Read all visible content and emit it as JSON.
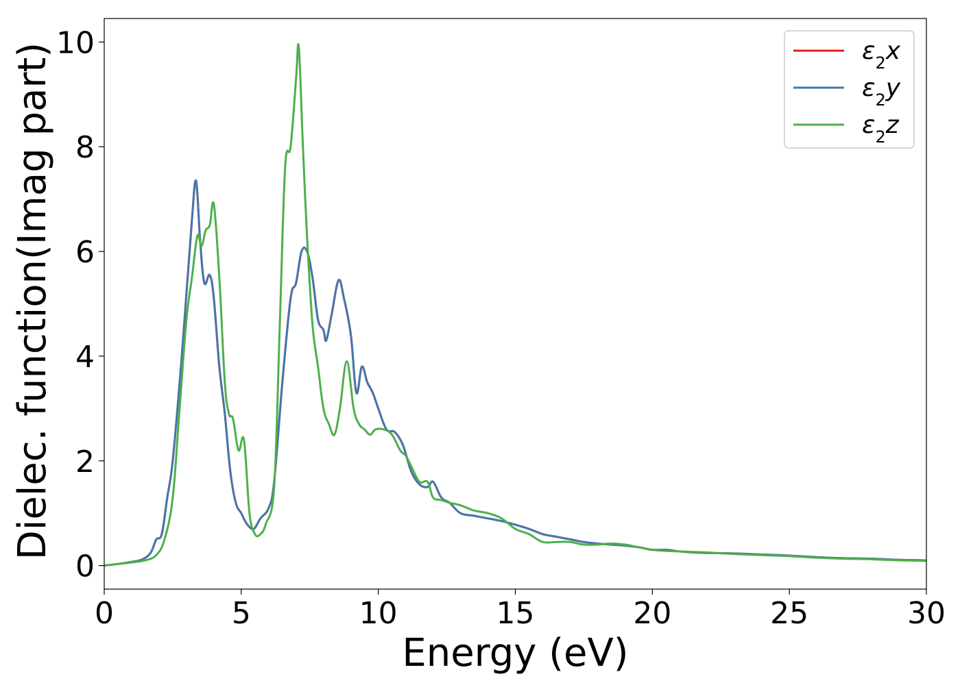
{
  "chart_data": {
    "type": "line",
    "title": "",
    "xlabel": "Energy (eV)",
    "ylabel": "Dielec. function(Imag part)",
    "xlim": [
      0,
      30
    ],
    "ylim": [
      -0.45,
      10.45
    ],
    "xticks": [
      0,
      5,
      10,
      15,
      20,
      25,
      30
    ],
    "yticks": [
      0,
      2,
      4,
      6,
      8,
      10
    ],
    "grid": false,
    "legend_position": "top-right",
    "series": [
      {
        "name": "ε2x",
        "legend_main": "ε",
        "legend_sub": "2",
        "legend_var": "x",
        "color": "#e41a1c",
        "x": [
          0,
          0.5,
          1,
          1.4,
          1.7,
          1.9,
          2.1,
          2.3,
          2.5,
          2.8,
          3.0,
          3.2,
          3.35,
          3.5,
          3.65,
          3.85,
          4.0,
          4.2,
          4.4,
          4.6,
          4.8,
          5.0,
          5.2,
          5.45,
          5.7,
          6.0,
          6.2,
          6.5,
          6.8,
          7.0,
          7.2,
          7.4,
          7.6,
          7.8,
          8.0,
          8.1,
          8.3,
          8.55,
          8.75,
          9.0,
          9.2,
          9.4,
          9.6,
          9.8,
          10.0,
          10.3,
          10.6,
          10.9,
          11.2,
          11.5,
          11.8,
          12.0,
          12.3,
          12.6,
          13.0,
          13.5,
          14.0,
          14.5,
          15.0,
          15.5,
          16.0,
          16.5,
          17.0,
          17.5,
          18.0,
          18.5,
          19.0,
          19.5,
          20.0,
          20.5,
          21.0,
          21.5,
          22.0,
          23.0,
          24.0,
          25.0,
          26.0,
          27.0,
          28.0,
          29.0,
          30.0
        ],
        "values": [
          0.0,
          0.03,
          0.07,
          0.12,
          0.25,
          0.5,
          0.6,
          1.3,
          2.0,
          3.8,
          5.2,
          6.6,
          7.35,
          6.2,
          5.4,
          5.55,
          5.1,
          3.8,
          2.9,
          1.8,
          1.2,
          1.0,
          0.8,
          0.7,
          0.9,
          1.1,
          1.6,
          3.5,
          5.1,
          5.4,
          6.0,
          6.0,
          5.5,
          4.7,
          4.5,
          4.3,
          4.8,
          5.45,
          5.1,
          4.4,
          3.3,
          3.8,
          3.5,
          3.3,
          3.0,
          2.6,
          2.55,
          2.3,
          1.8,
          1.55,
          1.5,
          1.6,
          1.3,
          1.2,
          1.0,
          0.95,
          0.9,
          0.85,
          0.78,
          0.7,
          0.6,
          0.55,
          0.5,
          0.45,
          0.42,
          0.4,
          0.38,
          0.35,
          0.3,
          0.3,
          0.27,
          0.25,
          0.24,
          0.23,
          0.21,
          0.19,
          0.16,
          0.14,
          0.13,
          0.11,
          0.1
        ]
      },
      {
        "name": "ε2y",
        "legend_main": "ε",
        "legend_sub": "2",
        "legend_var": "y",
        "color": "#4477aa",
        "x": [
          0,
          0.5,
          1,
          1.4,
          1.7,
          1.9,
          2.1,
          2.3,
          2.5,
          2.8,
          3.0,
          3.2,
          3.35,
          3.5,
          3.65,
          3.85,
          4.0,
          4.2,
          4.4,
          4.6,
          4.8,
          5.0,
          5.2,
          5.45,
          5.7,
          6.0,
          6.2,
          6.5,
          6.8,
          7.0,
          7.2,
          7.4,
          7.6,
          7.8,
          8.0,
          8.1,
          8.3,
          8.55,
          8.75,
          9.0,
          9.2,
          9.4,
          9.6,
          9.8,
          10.0,
          10.3,
          10.6,
          10.9,
          11.2,
          11.5,
          11.8,
          12.0,
          12.3,
          12.6,
          13.0,
          13.5,
          14.0,
          14.5,
          15.0,
          15.5,
          16.0,
          16.5,
          17.0,
          17.5,
          18.0,
          18.5,
          19.0,
          19.5,
          20.0,
          20.5,
          21.0,
          21.5,
          22.0,
          23.0,
          24.0,
          25.0,
          26.0,
          27.0,
          28.0,
          29.0,
          30.0
        ],
        "values": [
          0.0,
          0.03,
          0.07,
          0.12,
          0.25,
          0.5,
          0.6,
          1.3,
          2.0,
          3.8,
          5.2,
          6.6,
          7.35,
          6.2,
          5.4,
          5.55,
          5.1,
          3.8,
          2.9,
          1.8,
          1.2,
          1.0,
          0.8,
          0.7,
          0.9,
          1.1,
          1.6,
          3.5,
          5.1,
          5.4,
          6.0,
          6.0,
          5.5,
          4.7,
          4.5,
          4.3,
          4.8,
          5.45,
          5.1,
          4.4,
          3.3,
          3.8,
          3.5,
          3.3,
          3.0,
          2.6,
          2.55,
          2.3,
          1.8,
          1.55,
          1.5,
          1.6,
          1.3,
          1.2,
          1.0,
          0.95,
          0.9,
          0.85,
          0.78,
          0.7,
          0.6,
          0.55,
          0.5,
          0.45,
          0.42,
          0.4,
          0.38,
          0.35,
          0.3,
          0.3,
          0.27,
          0.25,
          0.24,
          0.23,
          0.21,
          0.19,
          0.16,
          0.14,
          0.13,
          0.11,
          0.1
        ]
      },
      {
        "name": "ε2z",
        "legend_main": "ε",
        "legend_sub": "2",
        "legend_var": "z",
        "color": "#4daf4a",
        "x": [
          0,
          0.5,
          1,
          1.5,
          1.9,
          2.2,
          2.5,
          2.75,
          3.0,
          3.2,
          3.4,
          3.55,
          3.7,
          3.85,
          4.0,
          4.2,
          4.4,
          4.55,
          4.7,
          4.9,
          5.1,
          5.3,
          5.5,
          5.7,
          5.9,
          6.2,
          6.4,
          6.6,
          6.8,
          7.0,
          7.1,
          7.25,
          7.4,
          7.6,
          7.8,
          8.0,
          8.2,
          8.4,
          8.6,
          8.85,
          9.1,
          9.3,
          9.5,
          9.7,
          9.9,
          10.2,
          10.5,
          10.8,
          11.0,
          11.2,
          11.5,
          11.8,
          12.0,
          12.3,
          12.6,
          13.0,
          13.5,
          14.0,
          14.5,
          15.0,
          15.5,
          16.0,
          16.5,
          17.0,
          17.5,
          18.0,
          18.5,
          19.0,
          19.5,
          20.0,
          20.5,
          21.0,
          21.5,
          22.0,
          23.0,
          24.0,
          25.0,
          26.0,
          27.0,
          28.0,
          29.0,
          30.0
        ],
        "values": [
          0.0,
          0.03,
          0.06,
          0.1,
          0.2,
          0.5,
          1.3,
          3.0,
          4.7,
          5.5,
          6.3,
          6.1,
          6.4,
          6.5,
          6.9,
          5.5,
          3.5,
          2.9,
          2.8,
          2.2,
          2.4,
          1.0,
          0.6,
          0.6,
          0.8,
          1.5,
          4.5,
          7.6,
          8.0,
          9.3,
          9.9,
          8.0,
          6.3,
          4.6,
          3.8,
          3.0,
          2.7,
          2.5,
          3.0,
          3.9,
          3.0,
          2.7,
          2.6,
          2.5,
          2.6,
          2.6,
          2.5,
          2.2,
          2.1,
          1.9,
          1.6,
          1.6,
          1.3,
          1.25,
          1.2,
          1.15,
          1.05,
          1.0,
          0.9,
          0.7,
          0.6,
          0.45,
          0.45,
          0.45,
          0.4,
          0.4,
          0.42,
          0.4,
          0.35,
          0.3,
          0.28,
          0.27,
          0.26,
          0.25,
          0.22,
          0.2,
          0.18,
          0.15,
          0.13,
          0.12,
          0.1,
          0.09
        ]
      }
    ]
  }
}
